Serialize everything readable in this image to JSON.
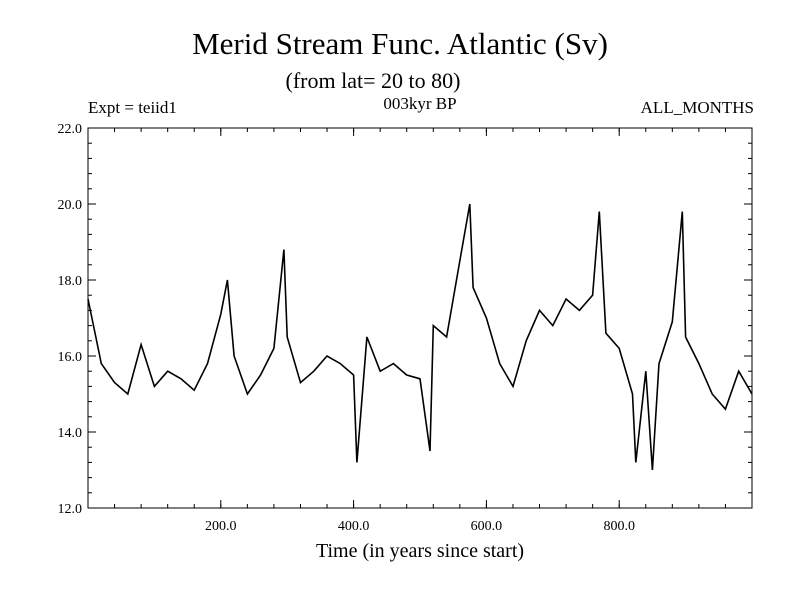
{
  "chart_data": {
    "type": "line",
    "title": "Merid Stream Func. Atlantic (Sv)",
    "subtitle": "(from lat= 20 to 80)",
    "annotations": {
      "experiment": "Expt = teiid1",
      "period": "003kyr BP",
      "months": "ALL_MONTHS"
    },
    "xlabel": "Time (in years since start)",
    "ylabel": "",
    "xlim": [
      0,
      1000
    ],
    "ylim": [
      12.0,
      22.0
    ],
    "x_ticks": [
      200,
      400,
      600,
      800
    ],
    "x_tick_labels": [
      "200.0",
      "400.0",
      "600.0",
      "800.0"
    ],
    "y_ticks": [
      12,
      14,
      16,
      18,
      20,
      22
    ],
    "y_tick_labels": [
      "12.0",
      "14.0",
      "16.0",
      "18.0",
      "20.0",
      "22.0"
    ],
    "grid": false,
    "legend": "none",
    "line_color": "#000000",
    "series": [
      {
        "x": [
          0,
          20,
          40,
          60,
          80,
          100,
          120,
          140,
          160,
          180,
          200,
          210,
          220,
          240,
          260,
          280,
          295,
          300,
          320,
          340,
          360,
          380,
          400,
          405,
          420,
          440,
          460,
          480,
          500,
          515,
          520,
          540,
          560,
          575,
          580,
          600,
          620,
          640,
          660,
          680,
          700,
          720,
          740,
          760,
          770,
          780,
          800,
          820,
          825,
          840,
          850,
          860,
          880,
          895,
          900,
          920,
          940,
          960,
          980,
          1000
        ],
        "y": [
          17.5,
          15.8,
          15.3,
          15.0,
          16.3,
          15.2,
          15.6,
          15.4,
          15.1,
          15.8,
          17.1,
          18.0,
          16.0,
          15.0,
          15.5,
          16.2,
          18.8,
          16.5,
          15.3,
          15.6,
          16.0,
          15.8,
          15.5,
          13.2,
          16.5,
          15.6,
          15.8,
          15.5,
          15.4,
          13.5,
          16.8,
          16.5,
          18.5,
          20.0,
          17.8,
          17.0,
          15.8,
          15.2,
          16.4,
          17.2,
          16.8,
          17.5,
          17.2,
          17.6,
          19.8,
          16.6,
          16.2,
          15.0,
          13.2,
          15.6,
          13.0,
          15.8,
          16.9,
          19.8,
          16.5,
          15.8,
          15.0,
          14.6,
          15.6,
          15.0
        ]
      }
    ]
  }
}
